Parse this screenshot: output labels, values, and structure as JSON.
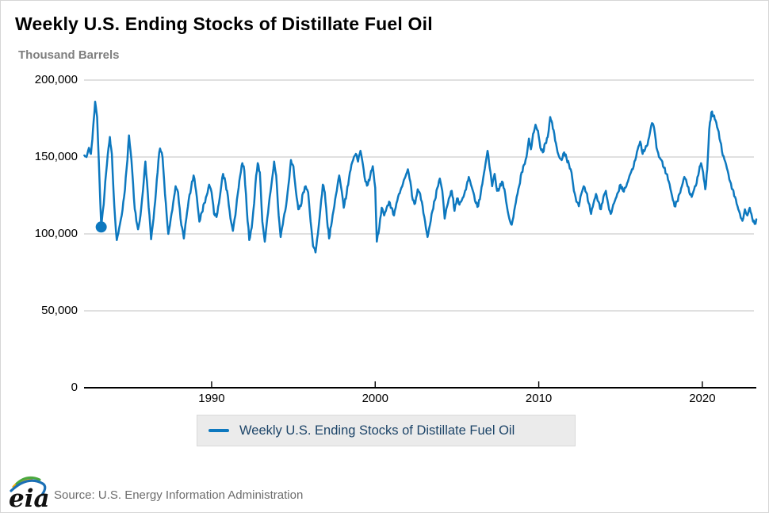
{
  "header": {
    "title": "Weekly U.S. Ending Stocks of Distillate Fuel Oil",
    "units_label": "Thousand Barrels"
  },
  "legend": {
    "label": "Weekly U.S. Ending Stocks of Distillate Fuel Oil"
  },
  "footer": {
    "source": "Source: U.S. Energy Information Administration",
    "logo_text": "eia"
  },
  "colors": {
    "series_blue": "#0d78bf",
    "grid_gray": "#c0c0c0",
    "axis_black": "#000000",
    "legend_bg": "#ebebeb",
    "legend_text": "#1c4468",
    "title_text": "#000000",
    "units_text": "#7f7f7f",
    "source_text": "#6c6c6c"
  },
  "chart_data": {
    "type": "line",
    "title": "Weekly U.S. Ending Stocks of Distillate Fuel Oil",
    "xlabel": "",
    "ylabel": "Thousand Barrels",
    "xlim": [
      1982.2,
      2023.3
    ],
    "ylim": [
      0,
      200000
    ],
    "grid": "horizontal",
    "legend_position": "bottom",
    "x_ticks": [
      1990,
      2000,
      2010,
      2020
    ],
    "y_ticks": [
      {
        "value": 0,
        "label": "0"
      },
      {
        "value": 50000,
        "label": "50,000"
      },
      {
        "value": 100000,
        "label": "100,000"
      },
      {
        "value": 150000,
        "label": "150,000"
      },
      {
        "value": 200000,
        "label": "200,000"
      }
    ],
    "start_marker": {
      "x": 1983.25,
      "y": 104500
    },
    "series": [
      {
        "name": "Weekly U.S. Ending Stocks of Distillate Fuel Oil",
        "color": "#0d78bf",
        "sampling": "approximate seasonal turning points, thousand barrels",
        "points": [
          [
            1982.22,
            151000
          ],
          [
            1982.35,
            150000
          ],
          [
            1982.5,
            156000
          ],
          [
            1982.62,
            152000
          ],
          [
            1982.75,
            168000
          ],
          [
            1982.88,
            186000
          ],
          [
            1983.0,
            176000
          ],
          [
            1983.1,
            148000
          ],
          [
            1983.25,
            104500
          ],
          [
            1983.4,
            119000
          ],
          [
            1983.55,
            140000
          ],
          [
            1983.7,
            156000
          ],
          [
            1983.78,
            163000
          ],
          [
            1983.9,
            152000
          ],
          [
            1984.05,
            118000
          ],
          [
            1984.2,
            96000
          ],
          [
            1984.35,
            104000
          ],
          [
            1984.5,
            112000
          ],
          [
            1984.65,
            124000
          ],
          [
            1984.8,
            142000
          ],
          [
            1984.95,
            164000
          ],
          [
            1985.1,
            148000
          ],
          [
            1985.3,
            116000
          ],
          [
            1985.5,
            103000
          ],
          [
            1985.65,
            112000
          ],
          [
            1985.8,
            128000
          ],
          [
            1985.95,
            147000
          ],
          [
            1986.1,
            126000
          ],
          [
            1986.3,
            96500
          ],
          [
            1986.45,
            110000
          ],
          [
            1986.6,
            128000
          ],
          [
            1986.75,
            148000
          ],
          [
            1986.85,
            155500
          ],
          [
            1987.0,
            150000
          ],
          [
            1987.15,
            126000
          ],
          [
            1987.35,
            100000
          ],
          [
            1987.5,
            110000
          ],
          [
            1987.65,
            120000
          ],
          [
            1987.8,
            131000
          ],
          [
            1987.95,
            127000
          ],
          [
            1988.1,
            110000
          ],
          [
            1988.3,
            97000
          ],
          [
            1988.45,
            110000
          ],
          [
            1988.6,
            122000
          ],
          [
            1988.75,
            130000
          ],
          [
            1988.9,
            138000
          ],
          [
            1989.05,
            128000
          ],
          [
            1989.25,
            108000
          ],
          [
            1989.4,
            114000
          ],
          [
            1989.55,
            120000
          ],
          [
            1989.7,
            125000
          ],
          [
            1989.85,
            132000
          ],
          [
            1990.0,
            127000
          ],
          [
            1990.15,
            113000
          ],
          [
            1990.3,
            111000
          ],
          [
            1990.45,
            120000
          ],
          [
            1990.6,
            132000
          ],
          [
            1990.7,
            139000
          ],
          [
            1990.85,
            133000
          ],
          [
            1991.0,
            124000
          ],
          [
            1991.15,
            110000
          ],
          [
            1991.3,
            102000
          ],
          [
            1991.45,
            112000
          ],
          [
            1991.6,
            126000
          ],
          [
            1991.75,
            138000
          ],
          [
            1991.88,
            146000
          ],
          [
            1992.0,
            141000
          ],
          [
            1992.15,
            116000
          ],
          [
            1992.3,
            96000
          ],
          [
            1992.45,
            104000
          ],
          [
            1992.6,
            120000
          ],
          [
            1992.72,
            138000
          ],
          [
            1992.82,
            146000
          ],
          [
            1992.95,
            140000
          ],
          [
            1993.1,
            108000
          ],
          [
            1993.25,
            95000
          ],
          [
            1993.4,
            110000
          ],
          [
            1993.55,
            124000
          ],
          [
            1993.7,
            136000
          ],
          [
            1993.82,
            147000
          ],
          [
            1993.95,
            138000
          ],
          [
            1994.1,
            112000
          ],
          [
            1994.22,
            98000
          ],
          [
            1994.4,
            110000
          ],
          [
            1994.55,
            118000
          ],
          [
            1994.7,
            132000
          ],
          [
            1994.85,
            148000
          ],
          [
            1995.0,
            144000
          ],
          [
            1995.15,
            128000
          ],
          [
            1995.3,
            116000
          ],
          [
            1995.45,
            118000
          ],
          [
            1995.6,
            127000
          ],
          [
            1995.75,
            131000
          ],
          [
            1995.9,
            127000
          ],
          [
            1996.05,
            108000
          ],
          [
            1996.2,
            92000
          ],
          [
            1996.35,
            88000
          ],
          [
            1996.5,
            100000
          ],
          [
            1996.65,
            116000
          ],
          [
            1996.8,
            132000
          ],
          [
            1996.92,
            127000
          ],
          [
            1997.05,
            110000
          ],
          [
            1997.18,
            97000
          ],
          [
            1997.35,
            108000
          ],
          [
            1997.5,
            118000
          ],
          [
            1997.65,
            128000
          ],
          [
            1997.8,
            138000
          ],
          [
            1997.95,
            128000
          ],
          [
            1998.08,
            117000
          ],
          [
            1998.25,
            126000
          ],
          [
            1998.4,
            136000
          ],
          [
            1998.55,
            145000
          ],
          [
            1998.7,
            150000
          ],
          [
            1998.82,
            152000
          ],
          [
            1998.95,
            147000
          ],
          [
            1999.1,
            154000
          ],
          [
            1999.25,
            145000
          ],
          [
            1999.4,
            134000
          ],
          [
            1999.55,
            132000
          ],
          [
            1999.7,
            138000
          ],
          [
            1999.85,
            144000
          ],
          [
            2000.0,
            130000
          ],
          [
            2000.1,
            95000
          ],
          [
            2000.25,
            104000
          ],
          [
            2000.4,
            117000
          ],
          [
            2000.55,
            112000
          ],
          [
            2000.7,
            117000
          ],
          [
            2000.85,
            121000
          ],
          [
            2001.0,
            117000
          ],
          [
            2001.15,
            112000
          ],
          [
            2001.3,
            120000
          ],
          [
            2001.45,
            126000
          ],
          [
            2001.6,
            130000
          ],
          [
            2001.75,
            135000
          ],
          [
            2001.9,
            139000
          ],
          [
            2002.0,
            142000
          ],
          [
            2002.15,
            134000
          ],
          [
            2002.3,
            122000
          ],
          [
            2002.45,
            120000
          ],
          [
            2002.6,
            129000
          ],
          [
            2002.75,
            126000
          ],
          [
            2002.9,
            118000
          ],
          [
            2003.05,
            108000
          ],
          [
            2003.2,
            98000
          ],
          [
            2003.35,
            106000
          ],
          [
            2003.5,
            115000
          ],
          [
            2003.65,
            122000
          ],
          [
            2003.8,
            130000
          ],
          [
            2003.95,
            136000
          ],
          [
            2004.1,
            128000
          ],
          [
            2004.25,
            110000
          ],
          [
            2004.4,
            118000
          ],
          [
            2004.55,
            124000
          ],
          [
            2004.68,
            128000
          ],
          [
            2004.85,
            115000
          ],
          [
            2005.0,
            123000
          ],
          [
            2005.15,
            119000
          ],
          [
            2005.3,
            122000
          ],
          [
            2005.45,
            126000
          ],
          [
            2005.6,
            132000
          ],
          [
            2005.72,
            137000
          ],
          [
            2005.85,
            132000
          ],
          [
            2006.0,
            127000
          ],
          [
            2006.15,
            120000
          ],
          [
            2006.3,
            118000
          ],
          [
            2006.45,
            126000
          ],
          [
            2006.6,
            136000
          ],
          [
            2006.75,
            146000
          ],
          [
            2006.87,
            154000
          ],
          [
            2007.0,
            143000
          ],
          [
            2007.15,
            131000
          ],
          [
            2007.3,
            139000
          ],
          [
            2007.45,
            128000
          ],
          [
            2007.6,
            130000
          ],
          [
            2007.75,
            134000
          ],
          [
            2007.9,
            129000
          ],
          [
            2008.05,
            118000
          ],
          [
            2008.2,
            110000
          ],
          [
            2008.35,
            106000
          ],
          [
            2008.5,
            115000
          ],
          [
            2008.65,
            124000
          ],
          [
            2008.8,
            131000
          ],
          [
            2008.95,
            140000
          ],
          [
            2009.1,
            145000
          ],
          [
            2009.25,
            150000
          ],
          [
            2009.4,
            162000
          ],
          [
            2009.52,
            155000
          ],
          [
            2009.65,
            165000
          ],
          [
            2009.8,
            171000
          ],
          [
            2009.95,
            167000
          ],
          [
            2010.1,
            156000
          ],
          [
            2010.25,
            153000
          ],
          [
            2010.4,
            159000
          ],
          [
            2010.55,
            163000
          ],
          [
            2010.7,
            176000
          ],
          [
            2010.82,
            172000
          ],
          [
            2010.95,
            165000
          ],
          [
            2011.1,
            156000
          ],
          [
            2011.25,
            150000
          ],
          [
            2011.4,
            148000
          ],
          [
            2011.55,
            153000
          ],
          [
            2011.7,
            149000
          ],
          [
            2011.85,
            145000
          ],
          [
            2012.0,
            140000
          ],
          [
            2012.15,
            128000
          ],
          [
            2012.3,
            121000
          ],
          [
            2012.45,
            118000
          ],
          [
            2012.6,
            126000
          ],
          [
            2012.75,
            131000
          ],
          [
            2012.9,
            127000
          ],
          [
            2013.05,
            120000
          ],
          [
            2013.2,
            113000
          ],
          [
            2013.35,
            120000
          ],
          [
            2013.5,
            126000
          ],
          [
            2013.65,
            121000
          ],
          [
            2013.8,
            116000
          ],
          [
            2013.95,
            124000
          ],
          [
            2014.1,
            128000
          ],
          [
            2014.25,
            119000
          ],
          [
            2014.4,
            113000
          ],
          [
            2014.55,
            119000
          ],
          [
            2014.7,
            123000
          ],
          [
            2014.85,
            127000
          ],
          [
            2015.0,
            132000
          ],
          [
            2015.15,
            128000
          ],
          [
            2015.3,
            130000
          ],
          [
            2015.45,
            134000
          ],
          [
            2015.6,
            139000
          ],
          [
            2015.75,
            142000
          ],
          [
            2015.9,
            148000
          ],
          [
            2016.05,
            155000
          ],
          [
            2016.2,
            160000
          ],
          [
            2016.35,
            152000
          ],
          [
            2016.5,
            155000
          ],
          [
            2016.65,
            158000
          ],
          [
            2016.8,
            166000
          ],
          [
            2016.92,
            172000
          ],
          [
            2017.05,
            169000
          ],
          [
            2017.2,
            156000
          ],
          [
            2017.35,
            150000
          ],
          [
            2017.5,
            148000
          ],
          [
            2017.65,
            143000
          ],
          [
            2017.8,
            139000
          ],
          [
            2017.95,
            134000
          ],
          [
            2018.1,
            127000
          ],
          [
            2018.3,
            118000
          ],
          [
            2018.45,
            121000
          ],
          [
            2018.6,
            126000
          ],
          [
            2018.75,
            131000
          ],
          [
            2018.9,
            137000
          ],
          [
            2019.05,
            133000
          ],
          [
            2019.2,
            127000
          ],
          [
            2019.35,
            124000
          ],
          [
            2019.5,
            129000
          ],
          [
            2019.65,
            133000
          ],
          [
            2019.8,
            141000
          ],
          [
            2019.92,
            146000
          ],
          [
            2020.05,
            140000
          ],
          [
            2020.18,
            129000
          ],
          [
            2020.3,
            142000
          ],
          [
            2020.42,
            168000
          ],
          [
            2020.55,
            179000
          ],
          [
            2020.68,
            177000
          ],
          [
            2020.8,
            174000
          ],
          [
            2020.95,
            168000
          ],
          [
            2021.1,
            160000
          ],
          [
            2021.25,
            151000
          ],
          [
            2021.4,
            147000
          ],
          [
            2021.55,
            141000
          ],
          [
            2021.7,
            134000
          ],
          [
            2021.85,
            129000
          ],
          [
            2022.0,
            124000
          ],
          [
            2022.15,
            118000
          ],
          [
            2022.3,
            113000
          ],
          [
            2022.45,
            108500
          ],
          [
            2022.6,
            116000
          ],
          [
            2022.75,
            112000
          ],
          [
            2022.9,
            117000
          ],
          [
            2023.0,
            113000
          ],
          [
            2023.1,
            108000
          ],
          [
            2023.2,
            106500
          ],
          [
            2023.3,
            109500
          ]
        ]
      }
    ]
  }
}
